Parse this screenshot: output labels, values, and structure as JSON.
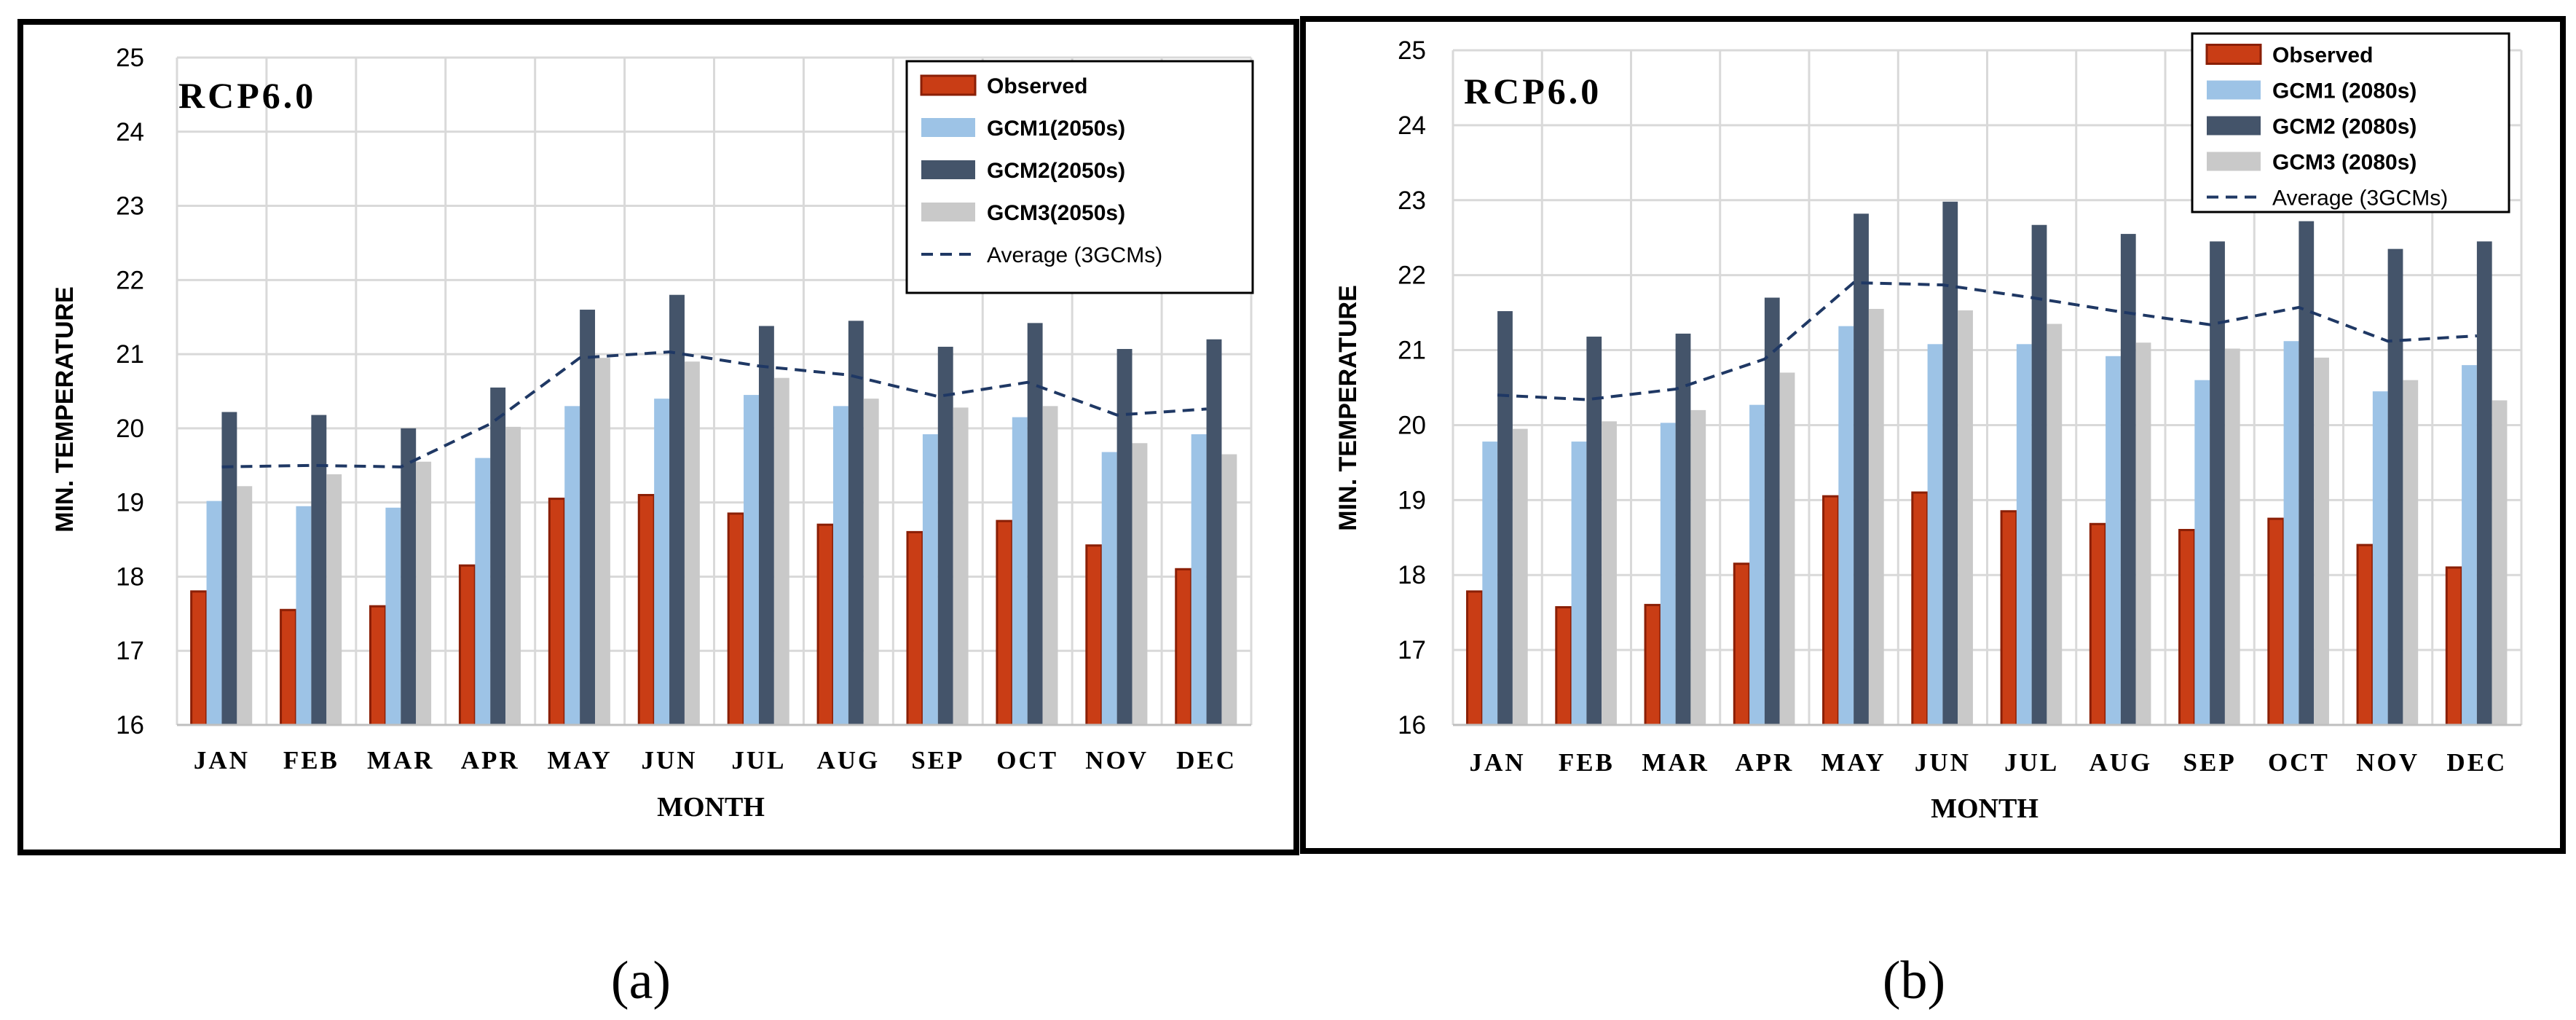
{
  "colors": {
    "observed_fill": "#c93d15",
    "observed_stroke": "#8a1f06",
    "gcm1": "#9dc3e6",
    "gcm2": "#44546a",
    "gcm3": "#c9c9c9",
    "average_line": "#1f3864",
    "grid": "#d9d9d9",
    "frame": "#000000"
  },
  "chart_data": [
    {
      "type": "bar",
      "panel_label": "(a)",
      "title": "RCP6.0",
      "xlabel": "MONTH",
      "ylabel": "MIN. TEMPERATURE",
      "ylim": [
        16,
        25
      ],
      "yticks": [
        "16",
        "17",
        "18",
        "19",
        "20",
        "21",
        "22",
        "23",
        "24",
        "25"
      ],
      "grid": true,
      "legend_position": "top-right",
      "categories": [
        "JAN",
        "FEB",
        "MAR",
        "APR",
        "MAY",
        "JUN",
        "JUL",
        "AUG",
        "SEP",
        "OCT",
        "NOV",
        "DEC"
      ],
      "series": [
        {
          "name": "Observed",
          "kind": "bar",
          "values": [
            17.8,
            17.55,
            17.6,
            18.15,
            19.05,
            19.1,
            18.85,
            18.7,
            18.6,
            18.75,
            18.42,
            18.1
          ]
        },
        {
          "name": "GCM1(2050s)",
          "kind": "bar",
          "values": [
            19.02,
            18.95,
            18.93,
            19.6,
            20.3,
            20.4,
            20.45,
            20.3,
            19.92,
            20.15,
            19.68,
            19.92
          ]
        },
        {
          "name": "GCM2(2050s)",
          "kind": "bar",
          "values": [
            20.22,
            20.18,
            20.0,
            20.55,
            21.6,
            21.8,
            21.38,
            21.45,
            21.1,
            21.42,
            21.07,
            21.2
          ]
        },
        {
          "name": "GCM3(2050s)",
          "kind": "bar",
          "values": [
            19.22,
            19.38,
            19.55,
            20.02,
            20.95,
            20.9,
            20.68,
            20.4,
            20.28,
            20.3,
            19.8,
            19.65
          ]
        },
        {
          "name": "Average (3GCMs)",
          "kind": "line",
          "values": [
            19.48,
            19.5,
            19.48,
            20.06,
            20.95,
            21.03,
            20.84,
            20.72,
            20.43,
            20.62,
            20.18,
            20.26
          ]
        }
      ]
    },
    {
      "type": "bar",
      "panel_label": "(b)",
      "title": "RCP6.0",
      "xlabel": "MONTH",
      "ylabel": "MIN. TEMPERATURE",
      "ylim": [
        16,
        25
      ],
      "yticks": [
        "16",
        "17",
        "18",
        "19",
        "20",
        "21",
        "22",
        "23",
        "24",
        "25"
      ],
      "grid": true,
      "legend_position": "top-right",
      "categories": [
        "JAN",
        "FEB",
        "MAR",
        "APR",
        "MAY",
        "JUN",
        "JUL",
        "AUG",
        "SEP",
        "OCT",
        "NOV",
        "DEC"
      ],
      "series": [
        {
          "name": "Observed",
          "kind": "bar",
          "values": [
            17.78,
            17.57,
            17.6,
            18.15,
            19.05,
            19.1,
            18.85,
            18.68,
            18.6,
            18.75,
            18.4,
            18.1
          ]
        },
        {
          "name": "GCM1 (2080s)",
          "kind": "bar",
          "values": [
            19.78,
            19.78,
            20.03,
            20.27,
            21.32,
            21.08,
            21.08,
            20.92,
            20.6,
            21.12,
            20.45,
            20.8
          ]
        },
        {
          "name": "GCM2 (2080s)",
          "kind": "bar",
          "values": [
            21.52,
            21.18,
            21.22,
            21.7,
            22.82,
            22.98,
            22.67,
            22.55,
            22.45,
            22.72,
            22.35,
            22.45
          ]
        },
        {
          "name": "GCM3 (2080s)",
          "kind": "bar",
          "values": [
            19.95,
            20.05,
            20.2,
            20.7,
            21.55,
            21.53,
            21.35,
            21.1,
            21.02,
            20.9,
            20.6,
            20.33
          ]
        },
        {
          "name": "Average (3GCMs)",
          "kind": "line",
          "values": [
            20.4,
            20.34,
            20.48,
            20.88,
            21.9,
            21.87,
            21.7,
            21.51,
            21.34,
            21.57,
            21.12,
            21.19
          ]
        }
      ]
    }
  ]
}
